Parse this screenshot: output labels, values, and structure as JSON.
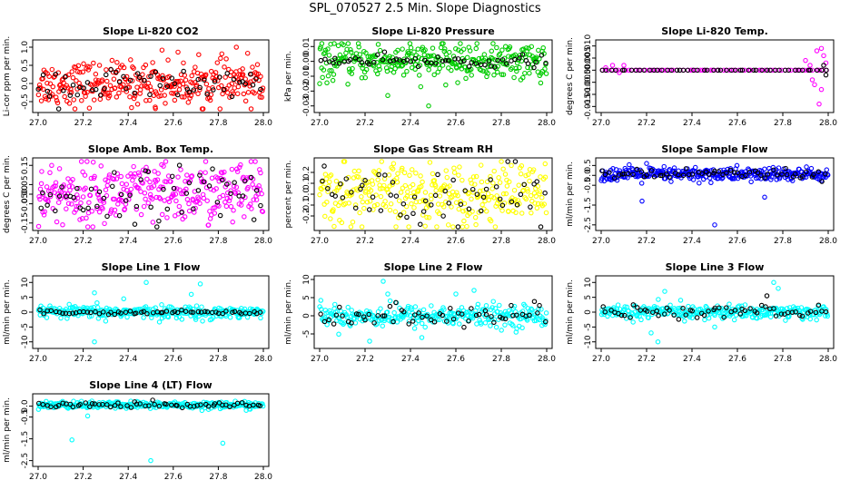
{
  "figure": {
    "title": "SPL_070527  2.5 Min. Slope Diagnostics"
  },
  "chart_data": [
    {
      "type": "scatter",
      "title": "Slope Li-820 CO2",
      "ylabel": "Li-cor ppm per min.",
      "xlim": [
        27.0,
        28.0
      ],
      "ylim": [
        -0.7,
        1.1
      ],
      "xticks": [
        "27.0",
        "27.2",
        "27.4",
        "27.6",
        "27.8",
        "28.0"
      ],
      "yticks": [
        {
          "v": -0.5,
          "label": "-0.5"
        },
        {
          "v": 0.0,
          "label": "0.0"
        },
        {
          "v": 0.5,
          "label": "0.5"
        },
        {
          "v": 1.0,
          "label": "1.0"
        }
      ],
      "series": [
        {
          "name": "primary",
          "color": "#ff0000",
          "center": 0.0,
          "spread": 0.3,
          "n": 320,
          "outliers": [
            [
              27.52,
              -0.65
            ],
            [
              27.88,
              1.0
            ],
            [
              27.55,
              0.92
            ]
          ]
        },
        {
          "name": "black",
          "color": "#000000",
          "center": -0.05,
          "spread": 0.25,
          "n": 60,
          "outliers": []
        }
      ]
    },
    {
      "type": "scatter",
      "title": "Slope Li-820 Pressure",
      "ylabel": "kPa per min.",
      "xlim": [
        27.0,
        28.0
      ],
      "ylim": [
        -0.032,
        0.012
      ],
      "xticks": [
        "27.0",
        "27.2",
        "27.4",
        "27.6",
        "27.8",
        "28.0"
      ],
      "yticks": [
        {
          "v": -0.03,
          "label": "-0.03"
        },
        {
          "v": -0.02,
          "label": "-0.02"
        },
        {
          "v": -0.01,
          "label": "-0.01"
        },
        {
          "v": 0.0,
          "label": "0.00"
        },
        {
          "v": 0.01,
          "label": "0.01"
        }
      ],
      "series": [
        {
          "name": "primary",
          "color": "#00cc00",
          "center": 0.0,
          "spread": 0.006,
          "n": 320,
          "outliers": [
            [
              27.3,
              -0.023
            ],
            [
              27.48,
              -0.03
            ],
            [
              27.0,
              -0.015
            ]
          ]
        },
        {
          "name": "black",
          "color": "#000000",
          "center": 0.0,
          "spread": 0.002,
          "n": 60,
          "outliers": []
        }
      ]
    },
    {
      "type": "scatter",
      "title": "Slope Li-820 Temp.",
      "ylabel": "degrees C per min.",
      "xlim": [
        27.0,
        28.0
      ],
      "ylim": [
        -0.016,
        0.011
      ],
      "xticks": [
        "27.0",
        "27.2",
        "27.4",
        "27.6",
        "27.8",
        "28.0"
      ],
      "yticks": [
        {
          "v": -0.015,
          "label": "-0.015"
        },
        {
          "v": -0.01,
          "label": "-0.010"
        },
        {
          "v": -0.005,
          "label": "-0.005"
        },
        {
          "v": 0.0,
          "label": "0.000"
        },
        {
          "v": 0.005,
          "label": "0.005"
        },
        {
          "v": 0.01,
          "label": "0.010"
        }
      ],
      "series": [
        {
          "name": "primary",
          "color": "#ff00ff",
          "center": 0.0,
          "spread": 0.0,
          "n": 70,
          "outliers": [
            [
              27.02,
              0.001
            ],
            [
              27.05,
              0.002
            ],
            [
              27.08,
              -0.001
            ],
            [
              27.1,
              0.002
            ],
            [
              27.9,
              0.004
            ],
            [
              27.93,
              -0.004
            ],
            [
              27.95,
              0.008
            ],
            [
              27.97,
              -0.008
            ],
            [
              27.98,
              0.006
            ],
            [
              27.92,
              0.002
            ],
            [
              27.96,
              -0.014
            ],
            [
              27.99,
              0.003
            ],
            [
              27.94,
              -0.006
            ],
            [
              27.97,
              0.009
            ]
          ]
        },
        {
          "name": "black",
          "color": "#000000",
          "center": 0.0,
          "spread": 0.0,
          "n": 50,
          "outliers": [
            [
              27.98,
              0.002
            ],
            [
              27.99,
              -0.002
            ]
          ]
        }
      ]
    },
    {
      "type": "scatter",
      "title": "Slope Amb. Box Temp.",
      "ylabel": "degrees C per min.",
      "xlim": [
        27.0,
        28.0
      ],
      "ylim": [
        -0.17,
        0.17
      ],
      "xticks": [
        "27.0",
        "27.2",
        "27.4",
        "27.6",
        "27.8",
        "28.0"
      ],
      "yticks": [
        {
          "v": -0.15,
          "label": "-0.15"
        },
        {
          "v": -0.05,
          "label": "-0.05"
        },
        {
          "v": 0.0,
          "label": "0.00"
        },
        {
          "v": 0.05,
          "label": "0.05"
        },
        {
          "v": 0.15,
          "label": "0.15"
        }
      ],
      "series": [
        {
          "name": "primary",
          "color": "#ff00ff",
          "center": 0.0,
          "spread": 0.08,
          "n": 320,
          "outliers": []
        },
        {
          "name": "black",
          "color": "#000000",
          "center": 0.0,
          "spread": 0.07,
          "n": 60,
          "outliers": []
        }
      ]
    },
    {
      "type": "scatter",
      "title": "Slope Gas Stream RH",
      "ylabel": "percent per min.",
      "xlim": [
        27.0,
        28.0
      ],
      "ylim": [
        -0.3,
        0.3
      ],
      "xticks": [
        "27.0",
        "27.2",
        "27.4",
        "27.6",
        "27.8",
        "28.0"
      ],
      "yticks": [
        {
          "v": -0.2,
          "label": "-0.2"
        },
        {
          "v": -0.1,
          "label": "-0.1"
        },
        {
          "v": 0.0,
          "label": "0.0"
        },
        {
          "v": 0.1,
          "label": "0.1"
        },
        {
          "v": 0.2,
          "label": "0.2"
        }
      ],
      "series": [
        {
          "name": "primary",
          "color": "#ffff00",
          "center": 0.0,
          "spread": 0.14,
          "n": 320,
          "outliers": []
        },
        {
          "name": "black",
          "color": "#000000",
          "center": 0.0,
          "spread": 0.13,
          "n": 60,
          "outliers": []
        }
      ]
    },
    {
      "type": "scatter",
      "title": "Slope Sample Flow",
      "ylabel": "ml/min per min.",
      "xlim": [
        27.0,
        28.0
      ],
      "ylim": [
        -2.6,
        0.7
      ],
      "xticks": [
        "27.0",
        "27.2",
        "27.4",
        "27.6",
        "27.8",
        "28.0"
      ],
      "yticks": [
        {
          "v": -2.5,
          "label": "-2.5"
        },
        {
          "v": -1.5,
          "label": "-1.5"
        },
        {
          "v": -0.5,
          "label": "-0.5"
        },
        {
          "v": 0.0,
          "label": "0.0"
        },
        {
          "v": 0.5,
          "label": "0.5"
        }
      ],
      "series": [
        {
          "name": "primary",
          "color": "#0000ff",
          "center": 0.05,
          "spread": 0.18,
          "n": 320,
          "outliers": [
            [
              27.18,
              -1.3
            ],
            [
              27.5,
              -2.5
            ],
            [
              27.72,
              -1.1
            ],
            [
              27.2,
              0.6
            ]
          ]
        },
        {
          "name": "black",
          "color": "#000000",
          "center": 0.05,
          "spread": 0.12,
          "n": 60,
          "outliers": []
        }
      ]
    },
    {
      "type": "scatter",
      "title": "Slope Line 1 Flow",
      "ylabel": "ml/min per min.",
      "xlim": [
        27.0,
        28.0
      ],
      "ylim": [
        -11,
        11
      ],
      "xticks": [
        "27.0",
        "27.2",
        "27.4",
        "27.6",
        "27.8",
        "28.0"
      ],
      "yticks": [
        {
          "v": -10,
          "label": "-10"
        },
        {
          "v": -5,
          "label": "-5"
        },
        {
          "v": 0,
          "label": "0"
        },
        {
          "v": 5,
          "label": "5"
        },
        {
          "v": 10,
          "label": "10"
        }
      ],
      "series": [
        {
          "name": "primary",
          "color": "#00ffff",
          "center": 0.0,
          "spread": 1.0,
          "n": 300,
          "outliers": [
            [
              27.25,
              6.5
            ],
            [
              27.25,
              -10
            ],
            [
              27.38,
              4.5
            ],
            [
              27.48,
              10
            ],
            [
              27.68,
              6
            ],
            [
              27.72,
              9.5
            ],
            [
              27.73,
              -3
            ],
            [
              27.3,
              -3
            ],
            [
              27.7,
              -2.5
            ]
          ]
        },
        {
          "name": "black",
          "color": "#000000",
          "center": 0.0,
          "spread": 0.3,
          "n": 60,
          "outliers": []
        }
      ]
    },
    {
      "type": "scatter",
      "title": "Slope Line 2 Flow",
      "ylabel": "ml/min per min.",
      "xlim": [
        27.0,
        28.0
      ],
      "ylim": [
        -8,
        10
      ],
      "xticks": [
        "27.0",
        "27.2",
        "27.4",
        "27.6",
        "27.8",
        "28.0"
      ],
      "yticks": [
        {
          "v": -5,
          "label": "-5"
        },
        {
          "v": 0,
          "label": "0"
        },
        {
          "v": 5,
          "label": "5"
        },
        {
          "v": 10,
          "label": "10"
        }
      ],
      "series": [
        {
          "name": "primary",
          "color": "#00ffff",
          "center": 0.0,
          "spread": 1.5,
          "n": 300,
          "outliers": [
            [
              27.28,
              9.5
            ],
            [
              27.3,
              6
            ],
            [
              27.22,
              -7
            ],
            [
              27.6,
              6
            ],
            [
              27.68,
              7
            ],
            [
              27.45,
              -6
            ]
          ]
        },
        {
          "name": "black",
          "color": "#000000",
          "center": 0.0,
          "spread": 1.5,
          "n": 60,
          "outliers": []
        }
      ]
    },
    {
      "type": "scatter",
      "title": "Slope Line 3 Flow",
      "ylabel": "ml/min per min.",
      "xlim": [
        27.0,
        28.0
      ],
      "ylim": [
        -11,
        11
      ],
      "xticks": [
        "27.0",
        "27.2",
        "27.4",
        "27.6",
        "27.8",
        "28.0"
      ],
      "yticks": [
        {
          "v": -10,
          "label": "-10"
        },
        {
          "v": -5,
          "label": "-5"
        },
        {
          "v": 0,
          "label": "0"
        },
        {
          "v": 5,
          "label": "5"
        },
        {
          "v": 10,
          "label": "10"
        }
      ],
      "series": [
        {
          "name": "primary",
          "color": "#00ffff",
          "center": 0.0,
          "spread": 1.2,
          "n": 300,
          "outliers": [
            [
              27.25,
              -10
            ],
            [
              27.22,
              -7
            ],
            [
              27.28,
              7
            ],
            [
              27.35,
              4
            ],
            [
              27.76,
              10
            ],
            [
              27.78,
              8
            ],
            [
              27.5,
              -5
            ]
          ]
        },
        {
          "name": "black",
          "color": "#000000",
          "center": 0.0,
          "spread": 1.0,
          "n": 60,
          "outliers": [
            [
              27.73,
              5.5
            ]
          ]
        }
      ]
    },
    {
      "type": "scatter",
      "title": "Slope Line 4 (LT) Flow",
      "ylabel": "ml/min per min.",
      "xlim": [
        27.0,
        28.0
      ],
      "ylim": [
        -2.6,
        0.4
      ],
      "xticks": [
        "27.0",
        "27.2",
        "27.4",
        "27.6",
        "27.8",
        "28.0"
      ],
      "yticks": [
        {
          "v": -2.5,
          "label": "-2.5"
        },
        {
          "v": -1.5,
          "label": "-1.5"
        },
        {
          "v": -0.5,
          "label": "-0.5"
        },
        {
          "v": 0.0,
          "label": "0.0"
        }
      ],
      "series": [
        {
          "name": "primary",
          "color": "#00ffff",
          "center": 0.05,
          "spread": 0.08,
          "n": 320,
          "outliers": [
            [
              27.22,
              -0.45
            ],
            [
              27.15,
              -1.55
            ],
            [
              27.5,
              -2.5
            ],
            [
              27.82,
              -1.7
            ]
          ]
        },
        {
          "name": "black",
          "color": "#000000",
          "center": 0.05,
          "spread": 0.06,
          "n": 60,
          "outliers": []
        }
      ]
    }
  ]
}
